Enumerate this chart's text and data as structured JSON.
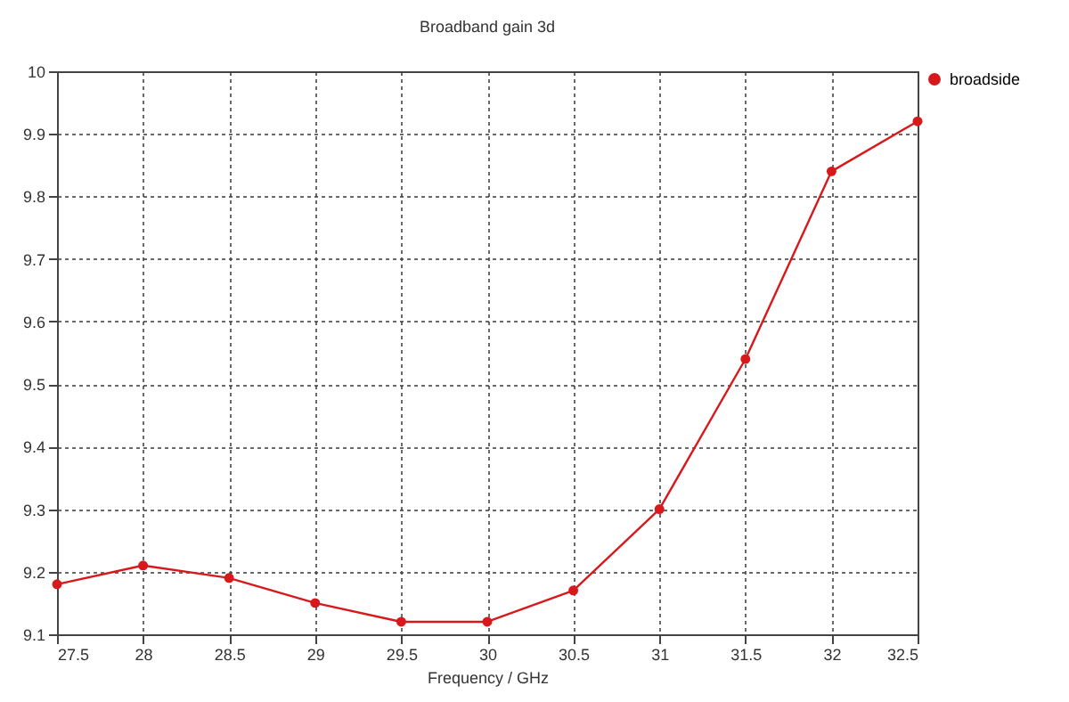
{
  "chart_data": {
    "type": "line",
    "title": "Broadband gain 3d",
    "xlabel": "Frequency / GHz",
    "x": [
      27.5,
      28,
      28.5,
      29,
      29.5,
      30,
      30.5,
      31,
      31.5,
      32,
      32.5
    ],
    "series": [
      {
        "name": "broadside",
        "color": "#d7191c",
        "values": [
          9.18,
          9.21,
          9.19,
          9.15,
          9.12,
          9.12,
          9.17,
          9.3,
          9.54,
          9.84,
          9.92
        ]
      }
    ],
    "xlim": [
      27.5,
      32.5
    ],
    "xticks": [
      27.5,
      28,
      28.5,
      29,
      29.5,
      30,
      30.5,
      31,
      31.5,
      32,
      32.5
    ],
    "ylim": [
      9.1,
      10
    ],
    "yticks": [
      9.1,
      9.2,
      9.3,
      9.4,
      9.5,
      9.6,
      9.7,
      9.8,
      9.9,
      10
    ],
    "grid": true,
    "legend": "top right",
    "marker": "circle",
    "line_style": "solid"
  }
}
